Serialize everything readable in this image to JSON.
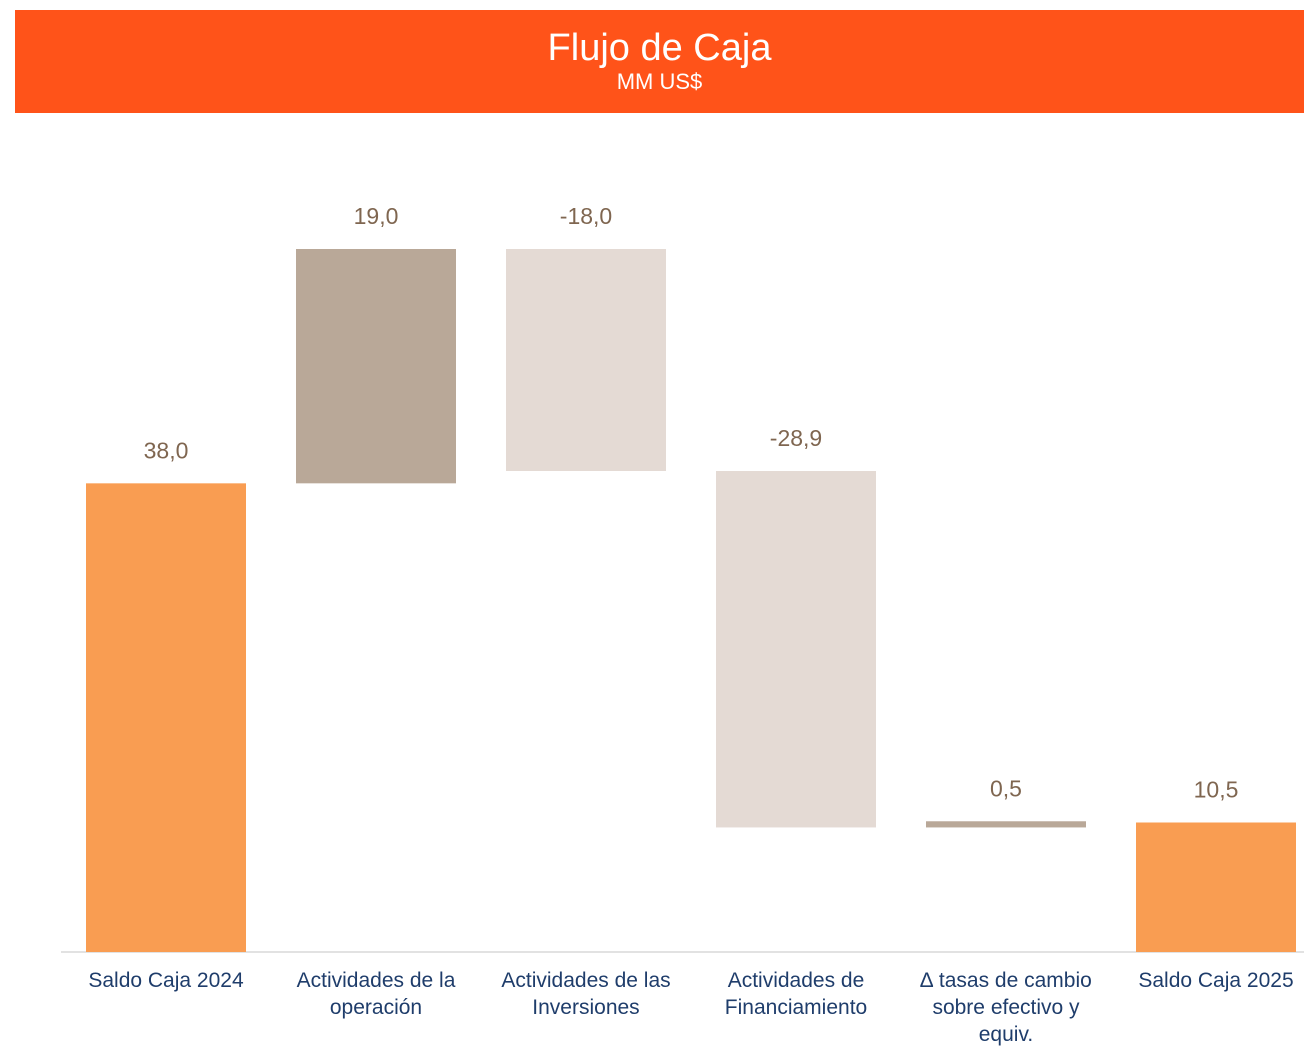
{
  "chart_data": {
    "type": "waterfall",
    "title": "Flujo de Caja",
    "subtitle": "MM US$",
    "categories": [
      "Saldo Caja 2024",
      "Actividades de la operación",
      "Actividades de las Inversiones",
      "Actividades de Financiamiento",
      "∆ tasas de cambio sobre efectivo y equiv.",
      "Saldo Caja 2025"
    ],
    "values": [
      38.0,
      19.0,
      -18.0,
      -28.9,
      0.5,
      10.5
    ],
    "value_labels": [
      "38,0",
      "19,0",
      "-18,0",
      "-28,9",
      "0,5",
      "10,5"
    ],
    "measure": [
      "absolute",
      "relative",
      "relative",
      "relative",
      "relative",
      "absolute"
    ],
    "colors": {
      "absolute": "#f99d52",
      "increase": "#b9a898",
      "decrease": "#e4dad4"
    },
    "ylim": [
      0,
      60
    ]
  }
}
